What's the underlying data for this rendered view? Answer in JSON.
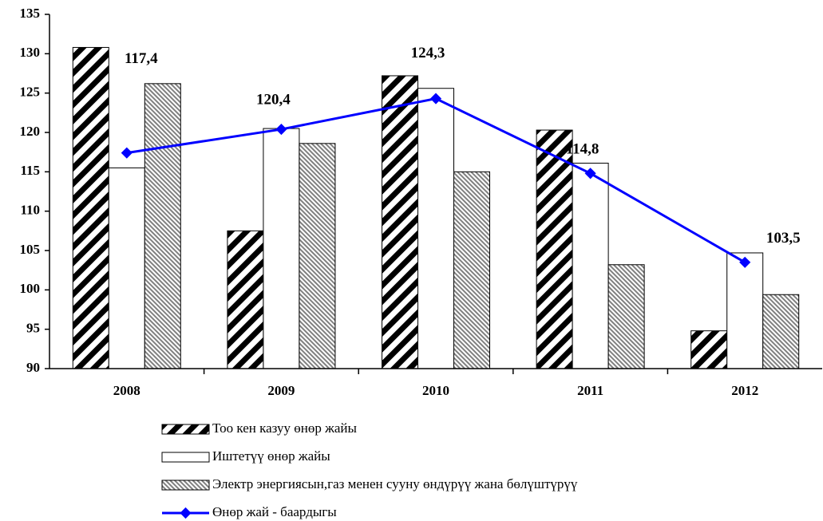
{
  "chart_data": {
    "type": "bar",
    "categories": [
      "2008",
      "2009",
      "2010",
      "2011",
      "2012"
    ],
    "series": [
      {
        "name": "Тоо кен казуу өнөр жайы",
        "color": "#000000",
        "values": [
          130.8,
          107.5,
          127.2,
          120.3,
          94.8
        ]
      },
      {
        "name": "Иштетүү өнөр жайы",
        "color": "#ffffff",
        "values": [
          115.5,
          120.5,
          125.6,
          116.1,
          104.7
        ]
      },
      {
        "name": "Электр энергиясын,газ менен сууну өндүрүү жана бөлүштүрүү",
        "color": "#808080",
        "values": [
          126.2,
          118.6,
          115.0,
          103.2,
          99.4
        ]
      },
      {
        "name": "Өнөр жай - баардыгы",
        "type": "line",
        "color": "#0000ff",
        "values": [
          117.4,
          120.4,
          124.3,
          114.8,
          103.5
        ],
        "value_labels": [
          "117,4",
          "120,4",
          "124,3",
          "114,8",
          "103,5"
        ]
      }
    ],
    "ylim": [
      90,
      135
    ],
    "yticks": [
      90,
      95,
      100,
      105,
      110,
      115,
      120,
      125,
      130,
      135
    ],
    "grid": false
  }
}
